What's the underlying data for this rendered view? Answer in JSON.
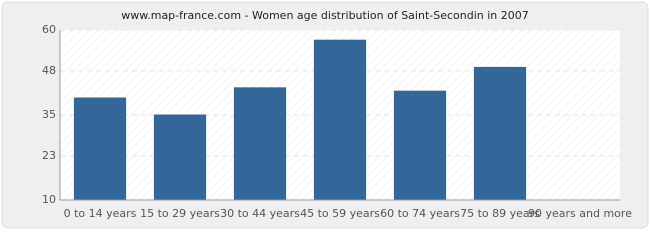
{
  "chart_data": {
    "type": "bar",
    "title": "www.map-france.com - Women age distribution of Saint-Secondin in 2007",
    "categories": [
      "0 to 14 years",
      "15 to 29 years",
      "30 to 44 years",
      "45 to 59 years",
      "60 to 74 years",
      "75 to 89 years",
      "90 years and more"
    ],
    "values": [
      40,
      35,
      43,
      57,
      42,
      49,
      10
    ],
    "color": "#336699",
    "ylim": [
      10,
      60
    ],
    "yticks": [
      10,
      23,
      35,
      48,
      60
    ],
    "grid": true
  }
}
